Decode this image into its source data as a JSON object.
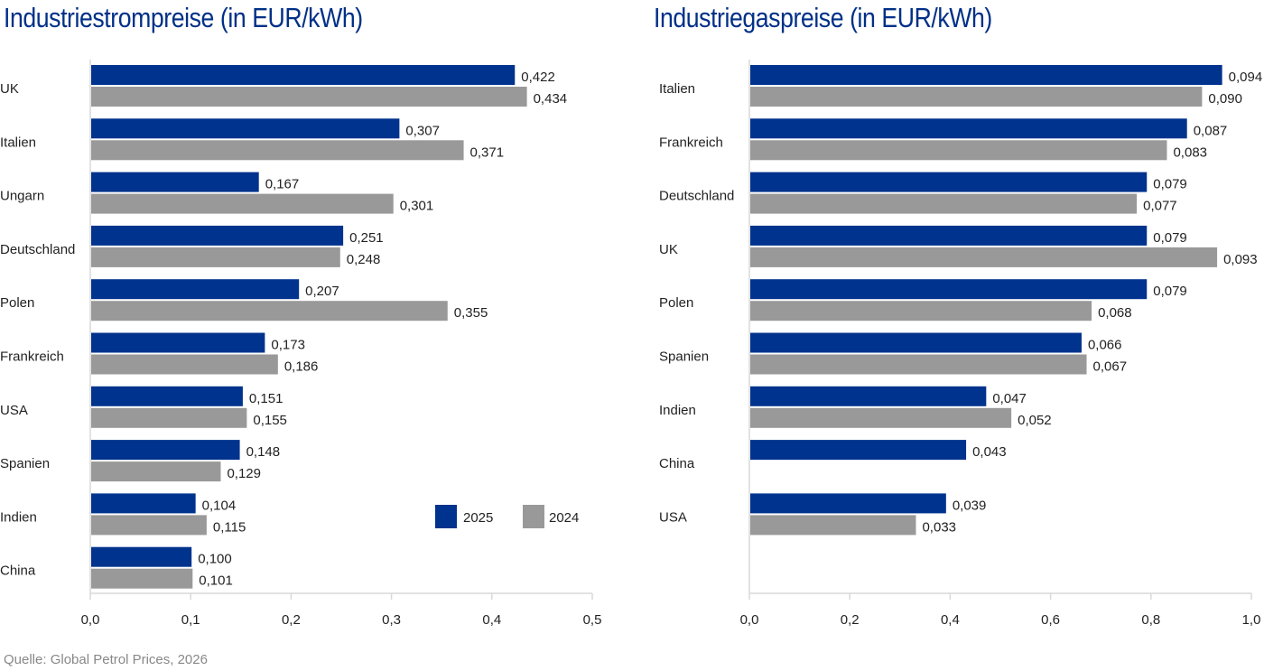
{
  "source": "Quelle: Global Petrol Prices, 2026",
  "colors": {
    "s2025": "#00338d",
    "s2024": "#999999",
    "axis": "#d9d9d9"
  },
  "chart_data": [
    {
      "type": "bar",
      "orientation": "horizontal",
      "title": "Industriestrompreise (in EUR/kWh)",
      "categories": [
        "UK",
        "Italien",
        "Ungarn",
        "Deutschland",
        "Polen",
        "Frankreich",
        "USA",
        "Spanien",
        "Indien",
        "China"
      ],
      "series": [
        {
          "name": "2025",
          "values": [
            0.422,
            0.307,
            0.167,
            0.251,
            0.207,
            0.173,
            0.151,
            0.148,
            0.104,
            0.1
          ],
          "labels": [
            "0,422",
            "0,307",
            "0,167",
            "0,251",
            "0,207",
            "0,173",
            "0,151",
            "0,148",
            "0,104",
            "0,100"
          ]
        },
        {
          "name": "2024",
          "values": [
            0.434,
            0.371,
            0.301,
            0.248,
            0.355,
            0.186,
            0.155,
            0.129,
            0.115,
            0.101
          ],
          "labels": [
            "0,434",
            "0,371",
            "0,301",
            "0,248",
            "0,355",
            "0,186",
            "0,155",
            "0,129",
            "0,115",
            "0,101"
          ]
        }
      ],
      "xlim": [
        0,
        0.5
      ],
      "xticks": [
        "0,0",
        "0,1",
        "0,2",
        "0,3",
        "0,4",
        "0,5"
      ],
      "axis_scale": 1,
      "legend": {
        "position": "bottom-right",
        "entries": [
          "2025",
          "2024"
        ]
      }
    },
    {
      "type": "bar",
      "orientation": "horizontal",
      "title": "Industriegaspreise (in EUR/kWh)",
      "categories": [
        "Italien",
        "Frankreich",
        "Deutschland",
        "UK",
        "Polen",
        "Spanien",
        "Indien",
        "China",
        "USA"
      ],
      "series": [
        {
          "name": "2025",
          "values": [
            0.094,
            0.087,
            0.079,
            0.079,
            0.079,
            0.066,
            0.047,
            0.043,
            0.039
          ],
          "labels": [
            "0,094",
            "0,087",
            "0,079",
            "0,079",
            "0,079",
            "0,066",
            "0,047",
            "0,043",
            "0,039"
          ]
        },
        {
          "name": "2024",
          "values": [
            0.09,
            0.083,
            0.077,
            0.093,
            0.068,
            0.067,
            0.052,
            null,
            0.033
          ],
          "labels": [
            "0,090",
            "0,083",
            "0,077",
            "0,093",
            "0,068",
            "0,067",
            "0,052",
            null,
            "0,033"
          ]
        }
      ],
      "xlim": [
        0,
        1.0
      ],
      "xticks": [
        "0,0",
        "0,2",
        "0,4",
        "0,6",
        "0,8",
        "1,0"
      ],
      "axis_scale": 10
    }
  ]
}
